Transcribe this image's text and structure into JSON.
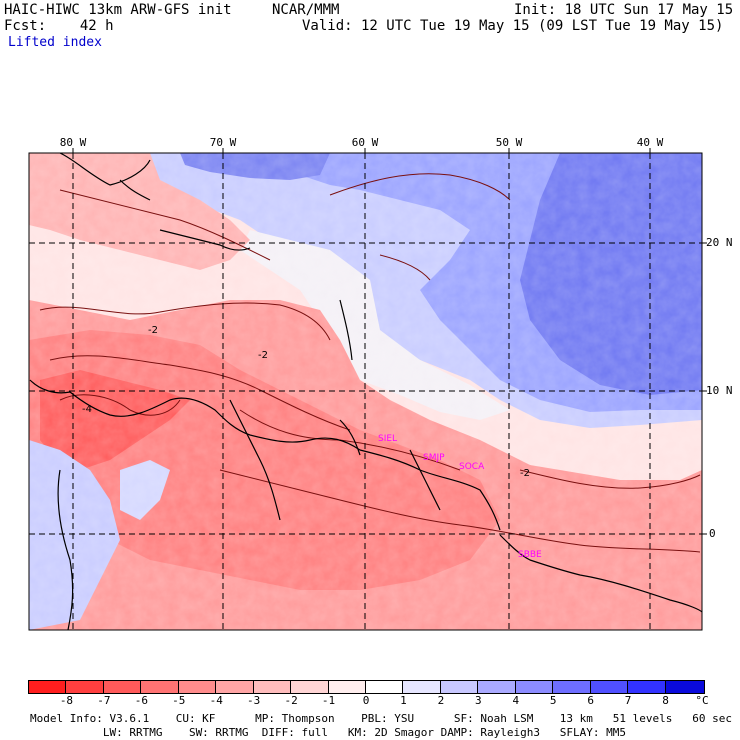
{
  "header": {
    "model_title": "HAIC-HIWC 13km ARW-GFS init",
    "org": "NCAR/MMM",
    "init": "Init: 18 UTC Sun 17 May 15",
    "fcst": "Fcst:    42 h",
    "valid": "Valid: 12 UTC Tue 19 May 15 (09 LST Tue 19 May 15)",
    "field": "Lifted index"
  },
  "axes": {
    "lon_labels": [
      "80 W",
      "70 W",
      "60 W",
      "50 W",
      "40 W"
    ],
    "lat_labels": [
      "20 N",
      "10 N",
      "0"
    ]
  },
  "stations": [
    "SIEL",
    "SMJP",
    "SOCA",
    "SBBE"
  ],
  "colorbar": {
    "labels": [
      "-8",
      "-7",
      "-6",
      "-5",
      "-4",
      "-3",
      "-2",
      "-1",
      "0",
      "1",
      "2",
      "3",
      "4",
      "5",
      "6",
      "7",
      "8"
    ],
    "unit": "°C",
    "colors": [
      "#ff1e1e",
      "#ff3f3f",
      "#ff5a5a",
      "#ff7373",
      "#ff8c8c",
      "#ffa5a5",
      "#ffbdbd",
      "#ffd5d5",
      "#ffeeee",
      "#ffffff",
      "#e6e6ff",
      "#c8c8ff",
      "#aaaaff",
      "#8c8cff",
      "#6e6eff",
      "#5050ff",
      "#3232ff",
      "#0a0adc"
    ]
  },
  "footer": {
    "line1": "Model Info: V3.6.1    CU: KF      MP: Thompson    PBL: YSU      SF: Noah LSM    13 km   51 levels   60 sec",
    "line2": "           LW: RRTMG    SW: RRTMG  DIFF: full   KM: 2D Smagor DAMP: Rayleigh3   SFLAY: MM5"
  }
}
